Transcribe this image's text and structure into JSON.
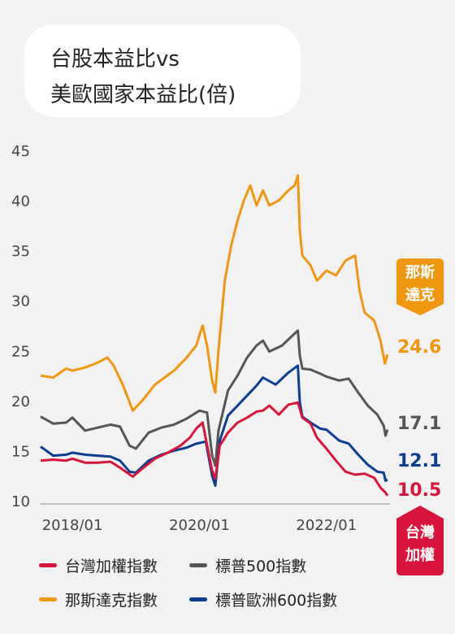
{
  "title": {
    "line1": "台股本益比vs",
    "line2": "美歐國家本益比(倍)"
  },
  "badges": {
    "nasdaq": {
      "line1": "那斯",
      "line2": "達克",
      "color": "#f0960f"
    },
    "taiwan": {
      "line1": "台灣",
      "line2": "加權",
      "color": "#d9143c"
    }
  },
  "chart_data": {
    "type": "line",
    "title": "台股本益比vs 美歐國家本益比(倍)",
    "xlabel": "",
    "ylabel": "",
    "ylim": [
      10,
      45
    ],
    "yticks": [
      "45",
      "40",
      "35",
      "30",
      "25",
      "20",
      "15",
      "10"
    ],
    "xticks": [
      {
        "label": "2018/01",
        "t": 2018.0
      },
      {
        "label": "2020/01",
        "t": 2020.0
      },
      {
        "label": "2022/01",
        "t": 2022.0
      }
    ],
    "xlim": [
      2017.5,
      2023.0
    ],
    "grid": false,
    "legend_position": "bottom",
    "series": [
      {
        "name": "台灣加權指數",
        "color": "#d9143c",
        "end_label": "10.5",
        "points": [
          [
            2017.5,
            14.0
          ],
          [
            2017.7,
            14.1
          ],
          [
            2017.9,
            14.0
          ],
          [
            2018.0,
            14.2
          ],
          [
            2018.2,
            13.8
          ],
          [
            2018.4,
            13.8
          ],
          [
            2018.6,
            13.9
          ],
          [
            2018.75,
            13.3
          ],
          [
            2018.95,
            12.4
          ],
          [
            2019.1,
            13.2
          ],
          [
            2019.3,
            14.2
          ],
          [
            2019.5,
            14.8
          ],
          [
            2019.7,
            15.5
          ],
          [
            2019.85,
            16.3
          ],
          [
            2019.95,
            17.2
          ],
          [
            2020.05,
            17.8
          ],
          [
            2020.2,
            13.0
          ],
          [
            2020.25,
            12.2
          ],
          [
            2020.32,
            15.5
          ],
          [
            2020.45,
            16.8
          ],
          [
            2020.6,
            17.8
          ],
          [
            2020.75,
            18.3
          ],
          [
            2020.9,
            18.9
          ],
          [
            2021.0,
            19.0
          ],
          [
            2021.1,
            19.5
          ],
          [
            2021.25,
            18.6
          ],
          [
            2021.4,
            19.6
          ],
          [
            2021.55,
            19.8
          ],
          [
            2021.58,
            19.2
          ],
          [
            2021.62,
            18.3
          ],
          [
            2021.75,
            17.7
          ],
          [
            2021.85,
            16.3
          ],
          [
            2022.0,
            15.2
          ],
          [
            2022.15,
            14.0
          ],
          [
            2022.3,
            12.9
          ],
          [
            2022.45,
            12.6
          ],
          [
            2022.6,
            12.7
          ],
          [
            2022.75,
            12.3
          ],
          [
            2022.85,
            11.3
          ],
          [
            2022.93,
            10.8
          ],
          [
            2022.96,
            10.5
          ]
        ]
      },
      {
        "name": "標普500指數",
        "color": "#555555",
        "end_label": "17.1",
        "points": [
          [
            2017.5,
            18.4
          ],
          [
            2017.7,
            17.7
          ],
          [
            2017.9,
            17.8
          ],
          [
            2018.0,
            18.3
          ],
          [
            2018.2,
            17.0
          ],
          [
            2018.4,
            17.3
          ],
          [
            2018.6,
            17.6
          ],
          [
            2018.75,
            17.4
          ],
          [
            2018.9,
            15.5
          ],
          [
            2019.0,
            15.2
          ],
          [
            2019.2,
            16.8
          ],
          [
            2019.4,
            17.3
          ],
          [
            2019.6,
            17.6
          ],
          [
            2019.8,
            18.2
          ],
          [
            2020.0,
            19.0
          ],
          [
            2020.12,
            18.8
          ],
          [
            2020.2,
            14.5
          ],
          [
            2020.25,
            13.5
          ],
          [
            2020.3,
            17.0
          ],
          [
            2020.45,
            21.0
          ],
          [
            2020.6,
            22.5
          ],
          [
            2020.75,
            24.3
          ],
          [
            2020.9,
            25.5
          ],
          [
            2021.0,
            26.0
          ],
          [
            2021.1,
            24.9
          ],
          [
            2021.3,
            25.5
          ],
          [
            2021.45,
            26.4
          ],
          [
            2021.55,
            27.0
          ],
          [
            2021.58,
            24.5
          ],
          [
            2021.62,
            23.2
          ],
          [
            2021.75,
            23.1
          ],
          [
            2021.9,
            22.7
          ],
          [
            2022.0,
            22.4
          ],
          [
            2022.2,
            22.0
          ],
          [
            2022.35,
            22.2
          ],
          [
            2022.5,
            20.8
          ],
          [
            2022.65,
            19.5
          ],
          [
            2022.8,
            18.6
          ],
          [
            2022.9,
            17.5
          ],
          [
            2022.93,
            16.5
          ],
          [
            2022.96,
            17.1
          ]
        ]
      },
      {
        "name": "那斯達克指數",
        "color": "#f0960f",
        "end_label": "24.6",
        "points": [
          [
            2017.5,
            22.5
          ],
          [
            2017.7,
            22.3
          ],
          [
            2017.9,
            23.2
          ],
          [
            2018.0,
            23.0
          ],
          [
            2018.2,
            23.3
          ],
          [
            2018.4,
            23.8
          ],
          [
            2018.55,
            24.3
          ],
          [
            2018.65,
            23.5
          ],
          [
            2018.8,
            21.5
          ],
          [
            2018.95,
            19.0
          ],
          [
            2019.1,
            20.0
          ],
          [
            2019.3,
            21.6
          ],
          [
            2019.45,
            22.3
          ],
          [
            2019.6,
            23.0
          ],
          [
            2019.8,
            24.3
          ],
          [
            2019.95,
            25.5
          ],
          [
            2020.05,
            27.5
          ],
          [
            2020.12,
            25.5
          ],
          [
            2020.2,
            22.0
          ],
          [
            2020.25,
            20.8
          ],
          [
            2020.3,
            25.0
          ],
          [
            2020.4,
            32.0
          ],
          [
            2020.5,
            35.5
          ],
          [
            2020.6,
            38.0
          ],
          [
            2020.7,
            40.0
          ],
          [
            2020.8,
            41.5
          ],
          [
            2020.9,
            39.5
          ],
          [
            2021.0,
            41.0
          ],
          [
            2021.1,
            39.5
          ],
          [
            2021.25,
            40.0
          ],
          [
            2021.4,
            41.0
          ],
          [
            2021.5,
            41.5
          ],
          [
            2021.55,
            42.5
          ],
          [
            2021.58,
            37.0
          ],
          [
            2021.62,
            34.5
          ],
          [
            2021.75,
            33.5
          ],
          [
            2021.85,
            32.0
          ],
          [
            2022.0,
            33.0
          ],
          [
            2022.15,
            32.5
          ],
          [
            2022.3,
            34.0
          ],
          [
            2022.45,
            34.5
          ],
          [
            2022.52,
            31.0
          ],
          [
            2022.6,
            28.8
          ],
          [
            2022.75,
            28.0
          ],
          [
            2022.85,
            26.0
          ],
          [
            2022.92,
            23.7
          ],
          [
            2022.96,
            24.6
          ]
        ]
      },
      {
        "name": "標普歐洲600指數",
        "color": "#0a3d91",
        "end_label": "12.1",
        "points": [
          [
            2017.5,
            15.4
          ],
          [
            2017.7,
            14.5
          ],
          [
            2017.9,
            14.6
          ],
          [
            2018.0,
            14.8
          ],
          [
            2018.2,
            14.6
          ],
          [
            2018.4,
            14.5
          ],
          [
            2018.6,
            14.4
          ],
          [
            2018.75,
            14.0
          ],
          [
            2018.9,
            12.9
          ],
          [
            2019.0,
            12.8
          ],
          [
            2019.2,
            14.0
          ],
          [
            2019.4,
            14.6
          ],
          [
            2019.6,
            15.0
          ],
          [
            2019.8,
            15.3
          ],
          [
            2019.95,
            15.7
          ],
          [
            2020.1,
            15.9
          ],
          [
            2020.2,
            12.5
          ],
          [
            2020.25,
            11.5
          ],
          [
            2020.32,
            16.0
          ],
          [
            2020.45,
            18.5
          ],
          [
            2020.6,
            19.5
          ],
          [
            2020.75,
            20.5
          ],
          [
            2020.9,
            21.5
          ],
          [
            2021.0,
            22.3
          ],
          [
            2021.2,
            21.6
          ],
          [
            2021.4,
            22.8
          ],
          [
            2021.55,
            23.5
          ],
          [
            2021.58,
            19.8
          ],
          [
            2021.62,
            18.4
          ],
          [
            2021.75,
            17.8
          ],
          [
            2021.9,
            17.2
          ],
          [
            2022.0,
            17.1
          ],
          [
            2022.2,
            16.0
          ],
          [
            2022.35,
            15.7
          ],
          [
            2022.5,
            14.6
          ],
          [
            2022.65,
            13.6
          ],
          [
            2022.8,
            12.9
          ],
          [
            2022.9,
            12.8
          ],
          [
            2022.93,
            12.0
          ],
          [
            2022.96,
            12.1
          ]
        ]
      }
    ]
  }
}
